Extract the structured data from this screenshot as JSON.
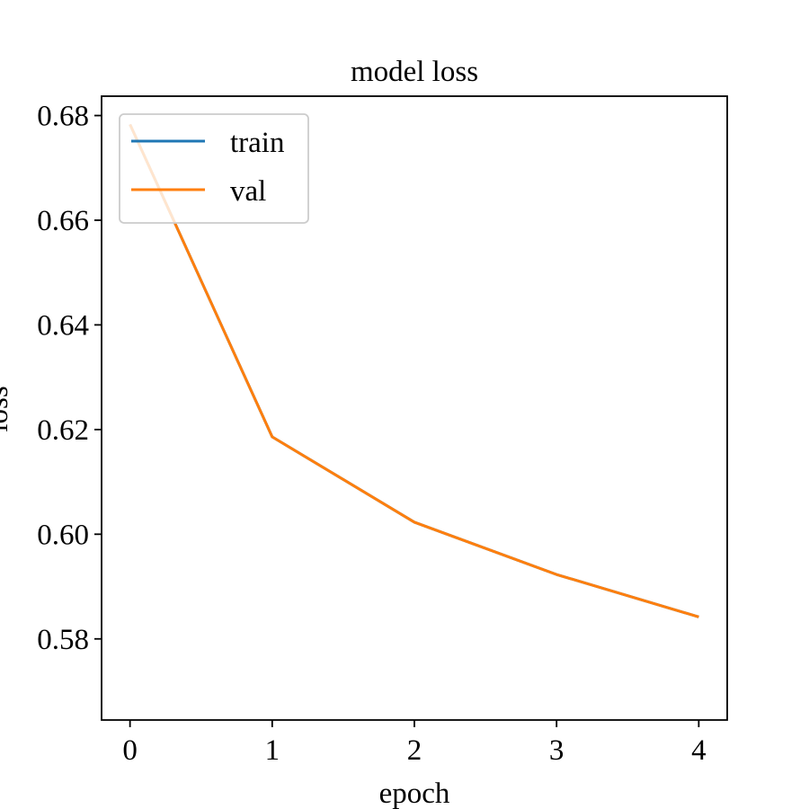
{
  "chart_data": {
    "type": "line",
    "title": "model loss",
    "xlabel": "epoch",
    "ylabel": "loss",
    "x": [
      0,
      1,
      2,
      3,
      4
    ],
    "xticks": [
      "0",
      "1",
      "2",
      "3",
      "4"
    ],
    "yticks": [
      "0.58",
      "0.60",
      "0.62",
      "0.64",
      "0.66",
      "0.68"
    ],
    "xlim": [
      -0.2,
      4.2
    ],
    "ylim": [
      0.5645,
      0.6837
    ],
    "grid": false,
    "legend_position": "upper-left",
    "series": [
      {
        "name": "train",
        "color": "#1f77b4",
        "values": [
          0.6783,
          0.6186,
          0.6023,
          0.5923,
          0.5842
        ]
      },
      {
        "name": "val",
        "color": "#ff7f0e",
        "values": [
          0.6783,
          0.6186,
          0.6023,
          0.5923,
          0.5842
        ]
      }
    ]
  }
}
